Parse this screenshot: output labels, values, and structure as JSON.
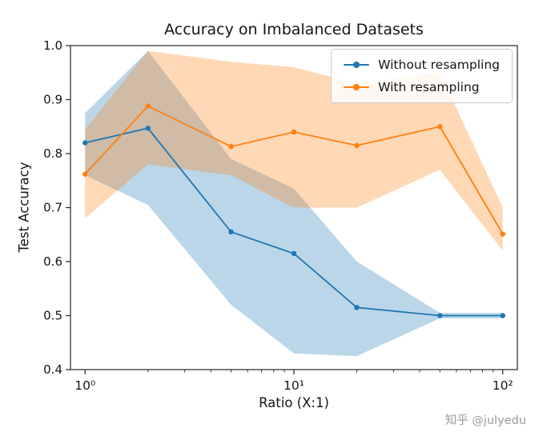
{
  "watermark": "知乎 @julyedu",
  "chart_data": {
    "type": "line",
    "title": "Accuracy on Imbalanced Datasets",
    "xlabel": "Ratio (X:1)",
    "ylabel": "Test Accuracy",
    "xscale": "log",
    "x": [
      1,
      2,
      5,
      10,
      20,
      50,
      100
    ],
    "xticklabels": [
      "10⁰",
      "10¹",
      "10²"
    ],
    "ylim": [
      0.4,
      1.0
    ],
    "yticks": [
      0.4,
      0.5,
      0.6,
      0.7,
      0.8,
      0.9,
      1.0
    ],
    "grid": false,
    "legend_position": "upper right",
    "series": [
      {
        "name": "Without resampling",
        "color": "#1f77b4",
        "values": [
          0.82,
          0.847,
          0.655,
          0.615,
          0.515,
          0.5,
          0.5
        ],
        "band_upper": [
          0.875,
          0.99,
          0.79,
          0.735,
          0.6,
          0.505,
          0.505
        ],
        "band_lower": [
          0.76,
          0.705,
          0.52,
          0.43,
          0.425,
          0.495,
          0.495
        ]
      },
      {
        "name": "With resampling",
        "color": "#ff7f0e",
        "values": [
          0.762,
          0.888,
          0.813,
          0.84,
          0.815,
          0.85,
          0.651
        ],
        "band_upper": [
          0.845,
          0.99,
          0.97,
          0.96,
          0.93,
          0.95,
          0.7
        ],
        "band_lower": [
          0.68,
          0.78,
          0.76,
          0.7,
          0.7,
          0.77,
          0.62
        ]
      }
    ]
  }
}
